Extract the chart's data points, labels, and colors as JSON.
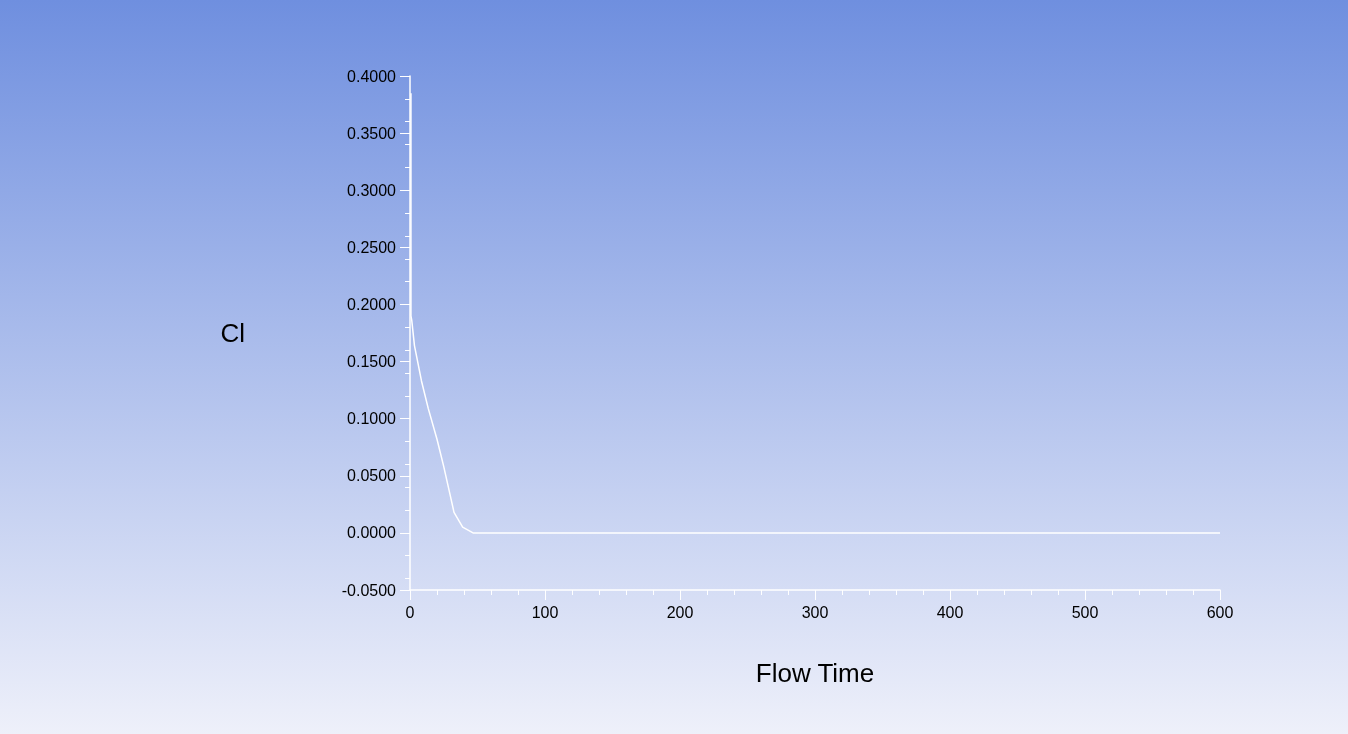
{
  "chart_data": {
    "type": "line",
    "xlabel": "Flow Time",
    "ylabel": "Cl",
    "series": [
      {
        "color": "#ffffff",
        "x": [
          0.7,
          0.7,
          1.3,
          3.3,
          8.5,
          13.5,
          20,
          25,
          29,
          32.6,
          39,
          46.7,
          60,
          100,
          200,
          300,
          400,
          500,
          600
        ],
        "values": [
          0.385,
          0.19,
          0.186,
          0.164,
          0.133,
          0.109,
          0.082,
          0.058,
          0.037,
          0.018,
          0.005,
          0,
          0,
          0,
          0,
          0,
          0,
          0,
          0
        ]
      }
    ],
    "xlim": [
      0,
      600
    ],
    "xticks": [
      0,
      100,
      200,
      300,
      400,
      500,
      600
    ],
    "ylim": [
      -0.05,
      0.4
    ],
    "yticks": [
      {
        "value": -0.05,
        "label": "-0.0500"
      },
      {
        "value": 0,
        "label": "0.0000"
      },
      {
        "value": 0.05,
        "label": "0.0500"
      },
      {
        "value": 0.1,
        "label": "0.1000"
      },
      {
        "value": 0.15,
        "label": "0.1500"
      },
      {
        "value": 0.2,
        "label": "0.2000"
      },
      {
        "value": 0.25,
        "label": "0.2500"
      },
      {
        "value": 0.3,
        "label": "0.3000"
      },
      {
        "value": 0.35,
        "label": "0.3500"
      },
      {
        "value": 0.4,
        "label": "0.4000"
      }
    ],
    "grid": false,
    "marker": "none",
    "line_style": "solid"
  }
}
